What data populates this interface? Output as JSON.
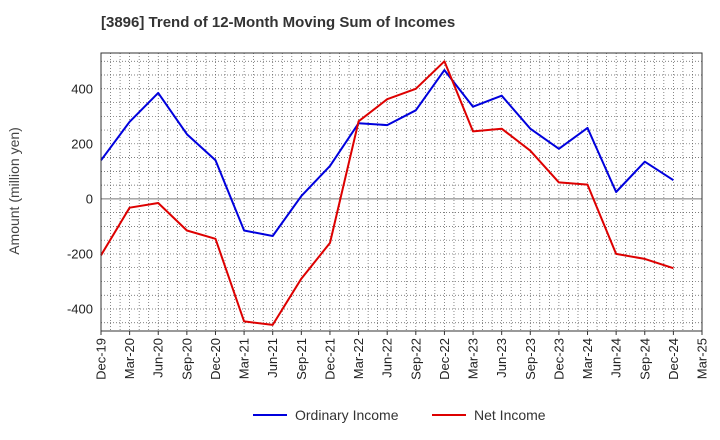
{
  "chart_data": {
    "type": "line",
    "title": "[3896]  Trend of 12-Month Moving Sum of Incomes",
    "ylabel": "Amount (million yen)",
    "xlabel": "",
    "ylim": [
      -480,
      530
    ],
    "yticks": [
      -400,
      -200,
      0,
      200,
      400
    ],
    "categories": [
      "Dec-19",
      "Mar-20",
      "Jun-20",
      "Sep-20",
      "Dec-20",
      "Mar-21",
      "Jun-21",
      "Sep-21",
      "Dec-21",
      "Mar-22",
      "Jun-22",
      "Sep-22",
      "Dec-22",
      "Mar-23",
      "Jun-23",
      "Sep-23",
      "Dec-23",
      "Mar-24",
      "Jun-24",
      "Sep-24",
      "Dec-24",
      "Mar-25"
    ],
    "grid": true,
    "legend_position": "bottom",
    "series": [
      {
        "name": "Ordinary Income",
        "color": "#0000dd",
        "values": [
          140,
          280,
          385,
          235,
          140,
          -115,
          -135,
          10,
          120,
          275,
          268,
          322,
          468,
          335,
          375,
          255,
          182,
          258,
          25,
          135,
          68,
          null
        ]
      },
      {
        "name": "Net Income",
        "color": "#dd0000",
        "values": [
          -205,
          -32,
          -15,
          -115,
          -145,
          -445,
          -458,
          -290,
          -160,
          282,
          362,
          400,
          500,
          245,
          255,
          175,
          60,
          52,
          -200,
          -218,
          -252,
          null
        ]
      }
    ]
  }
}
